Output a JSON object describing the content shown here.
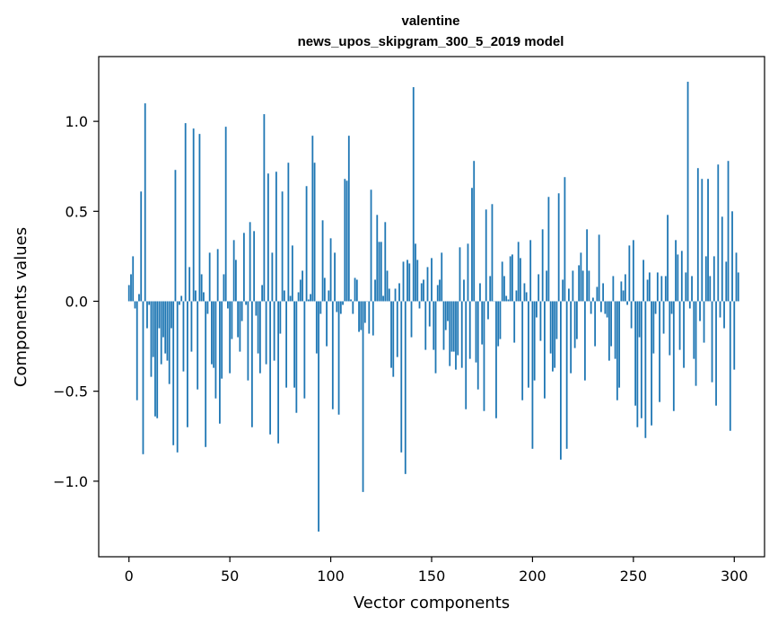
{
  "chart_data": {
    "type": "bar",
    "title": "valentine",
    "subtitle": "news_upos_skipgram_300_5_2019 model",
    "xlabel": "Vector components",
    "ylabel": "Components values",
    "xlim": [
      -15,
      315
    ],
    "ylim": [
      -1.42,
      1.36
    ],
    "xticks": [
      0,
      50,
      100,
      150,
      200,
      250,
      300
    ],
    "xtick_labels": [
      "0",
      "50",
      "100",
      "150",
      "200",
      "250",
      "300"
    ],
    "yticks": [
      -1.0,
      -0.5,
      0.0,
      0.5,
      1.0
    ],
    "ytick_labels": [
      "−1.0",
      "−0.5",
      "0.0",
      "0.5",
      "1.0"
    ],
    "grid": false,
    "bar_color": "#1f77b4",
    "values": [
      0.09,
      0.15,
      0.25,
      -0.04,
      -0.55,
      0.04,
      0.61,
      -0.85,
      1.1,
      -0.15,
      -0.02,
      -0.42,
      -0.31,
      -0.64,
      -0.65,
      -0.15,
      -0.35,
      -0.2,
      -0.29,
      -0.33,
      -0.46,
      -0.15,
      -0.8,
      0.73,
      -0.84,
      -0.02,
      0.03,
      -0.39,
      0.99,
      -0.7,
      0.19,
      -0.28,
      0.96,
      0.06,
      -0.49,
      0.93,
      0.15,
      0.05,
      -0.81,
      -0.07,
      0.27,
      -0.35,
      -0.37,
      -0.54,
      0.29,
      -0.68,
      -0.43,
      0.15,
      0.97,
      -0.04,
      -0.4,
      -0.21,
      0.34,
      0.23,
      -0.2,
      -0.28,
      -0.11,
      0.38,
      -0.02,
      -0.44,
      0.44,
      -0.7,
      0.39,
      -0.08,
      -0.29,
      -0.4,
      0.09,
      1.04,
      -0.35,
      0.71,
      -0.74,
      0.27,
      -0.33,
      0.72,
      -0.79,
      -0.18,
      0.61,
      0.06,
      -0.48,
      0.77,
      0.03,
      0.31,
      -0.48,
      -0.62,
      0.05,
      0.12,
      0.17,
      -0.54,
      0.64,
      0.01,
      0.04,
      0.92,
      0.77,
      -0.29,
      -1.28,
      -0.07,
      0.45,
      0.13,
      -0.25,
      0.06,
      0.35,
      -0.6,
      0.27,
      -0.06,
      -0.63,
      -0.07,
      -0.02,
      0.68,
      0.67,
      0.92,
      0.01,
      -0.07,
      0.13,
      0.12,
      -0.17,
      -0.16,
      -1.06,
      -0.12,
      0.0,
      -0.18,
      0.62,
      -0.19,
      0.12,
      0.48,
      0.33,
      0.33,
      0.03,
      0.44,
      0.17,
      0.07,
      -0.37,
      -0.42,
      0.07,
      -0.31,
      0.1,
      -0.84,
      0.22,
      -0.96,
      0.23,
      0.21,
      -0.2,
      1.19,
      0.32,
      0.23,
      -0.04,
      0.1,
      0.12,
      -0.27,
      0.19,
      -0.14,
      0.24,
      -0.27,
      -0.4,
      0.09,
      0.12,
      0.27,
      -0.27,
      -0.16,
      -0.11,
      -0.36,
      -0.28,
      -0.28,
      -0.38,
      -0.3,
      0.3,
      -0.37,
      0.12,
      -0.6,
      0.32,
      -0.32,
      0.63,
      0.78,
      -0.34,
      -0.49,
      0.1,
      -0.24,
      -0.61,
      0.51,
      -0.1,
      0.14,
      0.54,
      0.0,
      -0.65,
      -0.25,
      -0.21,
      0.22,
      0.14,
      0.03,
      0.01,
      0.25,
      0.26,
      -0.23,
      0.06,
      0.33,
      0.24,
      -0.55,
      0.1,
      0.05,
      -0.48,
      0.34,
      -0.82,
      -0.44,
      -0.09,
      0.15,
      -0.22,
      0.4,
      -0.54,
      0.17,
      0.58,
      -0.29,
      -0.39,
      -0.37,
      -0.21,
      0.6,
      -0.88,
      0.12,
      0.69,
      -0.82,
      0.07,
      -0.4,
      0.17,
      -0.26,
      -0.21,
      0.2,
      0.27,
      0.17,
      -0.44,
      0.4,
      0.17,
      -0.07,
      0.02,
      -0.25,
      0.08,
      0.37,
      -0.06,
      0.1,
      -0.07,
      -0.09,
      -0.33,
      -0.25,
      0.14,
      -0.32,
      -0.55,
      -0.48,
      0.11,
      0.06,
      0.15,
      -0.02,
      0.31,
      -0.15,
      0.34,
      -0.58,
      -0.7,
      -0.2,
      -0.65,
      0.23,
      -0.76,
      0.12,
      0.16,
      -0.69,
      -0.29,
      -0.07,
      0.16,
      -0.56,
      0.14,
      -0.18,
      0.14,
      0.48,
      -0.3,
      -0.07,
      -0.61,
      0.34,
      0.26,
      -0.27,
      0.28,
      -0.37,
      0.16,
      1.22,
      -0.04,
      0.14,
      -0.32,
      -0.47,
      0.74,
      -0.11,
      0.68,
      -0.23,
      0.25,
      0.68,
      0.14,
      -0.45,
      0.25,
      -0.58,
      0.76,
      -0.09,
      0.47,
      -0.15,
      0.22,
      0.78,
      -0.72,
      0.5,
      -0.38,
      0.27,
      0.16
    ]
  }
}
